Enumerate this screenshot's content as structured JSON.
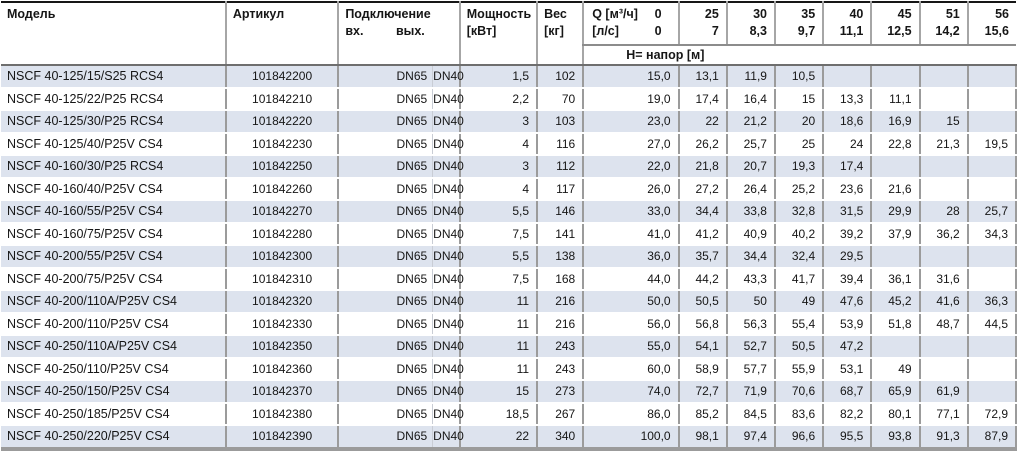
{
  "table": {
    "header": {
      "model": "Модель",
      "article": "Артикул",
      "connection": "Подключение",
      "conn_in": "вх.",
      "conn_out": "вых.",
      "power": "Мощность",
      "power_unit": "[кВт]",
      "weight": "Вес",
      "weight_unit": "[кг]",
      "q_m3h_label": "Q [м³/ч]",
      "q_m3h_zero": "0",
      "q_ls_label": "[л/с]",
      "q_ls_zero": "0",
      "head_row_label": "H= напор [м]",
      "flow_columns": [
        {
          "m3h": "25",
          "ls": "7"
        },
        {
          "m3h": "30",
          "ls": "8,3"
        },
        {
          "m3h": "35",
          "ls": "9,7"
        },
        {
          "m3h": "40",
          "ls": "11,1"
        },
        {
          "m3h": "45",
          "ls": "12,5"
        },
        {
          "m3h": "51",
          "ls": "14,2"
        },
        {
          "m3h": "56",
          "ls": "15,6"
        }
      ]
    },
    "rows": [
      {
        "model": "NSCF 40-125/15/S25 RCS4",
        "article": "101842200",
        "conn_in": "DN65",
        "conn_out": "DN40",
        "power": "1,5",
        "weight": "102",
        "h": [
          "15,0",
          "13,1",
          "11,9",
          "10,5",
          "",
          "",
          "",
          ""
        ]
      },
      {
        "model": "NSCF 40-125/22/P25 RCS4",
        "article": "101842210",
        "conn_in": "DN65",
        "conn_out": "DN40",
        "power": "2,2",
        "weight": "70",
        "h": [
          "19,0",
          "17,4",
          "16,4",
          "15",
          "13,3",
          "11,1",
          "",
          ""
        ]
      },
      {
        "model": "NSCF 40-125/30/P25 RCS4",
        "article": "101842220",
        "conn_in": "DN65",
        "conn_out": "DN40",
        "power": "3",
        "weight": "103",
        "h": [
          "23,0",
          "22",
          "21,2",
          "20",
          "18,6",
          "16,9",
          "15",
          ""
        ]
      },
      {
        "model": "NSCF 40-125/40/P25V CS4",
        "article": "101842230",
        "conn_in": "DN65",
        "conn_out": "DN40",
        "power": "4",
        "weight": "116",
        "h": [
          "27,0",
          "26,2",
          "25,7",
          "25",
          "24",
          "22,8",
          "21,3",
          "19,5"
        ]
      },
      {
        "model": "NSCF 40-160/30/P25 RCS4",
        "article": "101842250",
        "conn_in": "DN65",
        "conn_out": "DN40",
        "power": "3",
        "weight": "112",
        "h": [
          "22,0",
          "21,8",
          "20,7",
          "19,3",
          "17,4",
          "",
          "",
          ""
        ]
      },
      {
        "model": "NSCF 40-160/40/P25V CS4",
        "article": "101842260",
        "conn_in": "DN65",
        "conn_out": "DN40",
        "power": "4",
        "weight": "117",
        "h": [
          "26,0",
          "27,2",
          "26,4",
          "25,2",
          "23,6",
          "21,6",
          "",
          ""
        ]
      },
      {
        "model": "NSCF 40-160/55/P25V CS4",
        "article": "101842270",
        "conn_in": "DN65",
        "conn_out": "DN40",
        "power": "5,5",
        "weight": "146",
        "h": [
          "33,0",
          "34,4",
          "33,8",
          "32,8",
          "31,5",
          "29,9",
          "28",
          "25,7"
        ]
      },
      {
        "model": "NSCF 40-160/75/P25V CS4",
        "article": "101842280",
        "conn_in": "DN65",
        "conn_out": "DN40",
        "power": "7,5",
        "weight": "141",
        "h": [
          "41,0",
          "41,2",
          "40,9",
          "40,2",
          "39,2",
          "37,9",
          "36,2",
          "34,3"
        ]
      },
      {
        "model": "NSCF 40-200/55/P25V CS4",
        "article": "101842300",
        "conn_in": "DN65",
        "conn_out": "DN40",
        "power": "5,5",
        "weight": "138",
        "h": [
          "36,0",
          "35,7",
          "34,4",
          "32,4",
          "29,5",
          "",
          "",
          ""
        ]
      },
      {
        "model": "NSCF 40-200/75/P25V CS4",
        "article": "101842310",
        "conn_in": "DN65",
        "conn_out": "DN40",
        "power": "7,5",
        "weight": "168",
        "h": [
          "44,0",
          "44,2",
          "43,3",
          "41,7",
          "39,4",
          "36,1",
          "31,6",
          ""
        ]
      },
      {
        "model": "NSCF 40-200/110A/P25V CS4",
        "article": "101842320",
        "conn_in": "DN65",
        "conn_out": "DN40",
        "power": "11",
        "weight": "216",
        "h": [
          "50,0",
          "50,5",
          "50",
          "49",
          "47,6",
          "45,2",
          "41,6",
          "36,3"
        ]
      },
      {
        "model": "NSCF 40-200/110/P25V CS4",
        "article": "101842330",
        "conn_in": "DN65",
        "conn_out": "DN40",
        "power": "11",
        "weight": "216",
        "h": [
          "56,0",
          "56,8",
          "56,3",
          "55,4",
          "53,9",
          "51,8",
          "48,7",
          "44,5"
        ]
      },
      {
        "model": "NSCF 40-250/110A/P25V CS4",
        "article": "101842350",
        "conn_in": "DN65",
        "conn_out": "DN40",
        "power": "11",
        "weight": "243",
        "h": [
          "55,0",
          "54,1",
          "52,7",
          "50,5",
          "47,2",
          "",
          "",
          ""
        ]
      },
      {
        "model": "NSCF 40-250/110/P25V CS4",
        "article": "101842360",
        "conn_in": "DN65",
        "conn_out": "DN40",
        "power": "11",
        "weight": "243",
        "h": [
          "60,0",
          "58,9",
          "57,7",
          "55,9",
          "53,1",
          "49",
          "",
          ""
        ]
      },
      {
        "model": "NSCF 40-250/150/P25V CS4",
        "article": "101842370",
        "conn_in": "DN65",
        "conn_out": "DN40",
        "power": "15",
        "weight": "273",
        "h": [
          "74,0",
          "72,7",
          "71,9",
          "70,6",
          "68,7",
          "65,9",
          "61,9",
          ""
        ]
      },
      {
        "model": "NSCF 40-250/185/P25V CS4",
        "article": "101842380",
        "conn_in": "DN65",
        "conn_out": "DN40",
        "power": "18,5",
        "weight": "267",
        "h": [
          "86,0",
          "85,2",
          "84,5",
          "83,6",
          "82,2",
          "80,1",
          "77,1",
          "72,9"
        ]
      },
      {
        "model": "NSCF 40-250/220/P25V CS4",
        "article": "101842390",
        "conn_in": "DN65",
        "conn_out": "DN40",
        "power": "22",
        "weight": "340",
        "h": [
          "100,0",
          "98,1",
          "97,4",
          "96,6",
          "95,5",
          "93,8",
          "91,3",
          "87,9"
        ]
      }
    ],
    "colors": {
      "stripe": "#dde3ee",
      "separator": "#9b9b9b",
      "header_line": "#6e6e6e",
      "top_border": "#161616"
    }
  }
}
